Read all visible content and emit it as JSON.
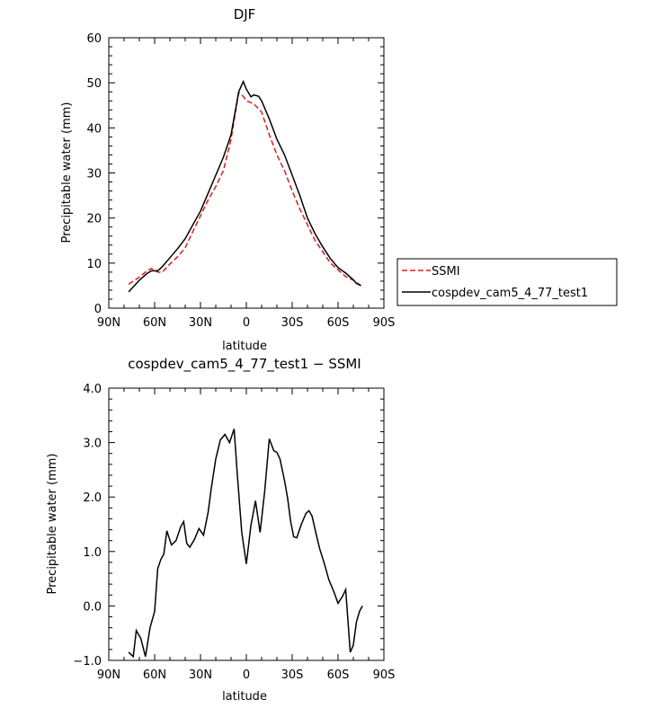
{
  "chart_data": [
    {
      "type": "line",
      "title": "DJF",
      "xlabel": "latitude",
      "ylabel": "Precipitable water (mm)",
      "xlim": [
        90,
        -90
      ],
      "ylim": [
        0,
        60
      ],
      "x_ticks": [
        90,
        60,
        30,
        0,
        -30,
        -60,
        -90
      ],
      "x_tick_labels": [
        "90N",
        "60N",
        "30N",
        "0",
        "30S",
        "60S",
        "90S"
      ],
      "y_ticks": [
        0,
        10,
        20,
        30,
        40,
        50,
        60
      ],
      "y_tick_labels": [
        "0",
        "10",
        "20",
        "30",
        "40",
        "50",
        "60"
      ],
      "grid": false,
      "legend_position": "right",
      "series": [
        {
          "name": "SSMI",
          "color": "#e01b1b",
          "dash": "dashed",
          "x": [
            77,
            70,
            65,
            62,
            58,
            55,
            50,
            45,
            40,
            35,
            30,
            25,
            20,
            15,
            10,
            5,
            2,
            0,
            -5,
            -10,
            -15,
            -20,
            -25,
            -30,
            -35,
            -40,
            -45,
            -50,
            -55,
            -60,
            -65,
            -70,
            -75
          ],
          "y": [
            5.3,
            6.9,
            8.3,
            8.8,
            8.0,
            8.0,
            9.8,
            11.4,
            13.4,
            17.0,
            20.5,
            24.0,
            27.0,
            30.5,
            37.5,
            47.8,
            47.0,
            46.0,
            45.3,
            43.5,
            38.5,
            34.0,
            30.5,
            26.0,
            22.0,
            18.5,
            15.0,
            12.5,
            10.0,
            8.5,
            7.0,
            6.2,
            5.0
          ]
        },
        {
          "name": "cospdev_cam5_4_77_test1",
          "color": "#000000",
          "dash": "solid",
          "x": [
            77,
            70,
            65,
            62,
            58,
            55,
            50,
            45,
            40,
            35,
            30,
            25,
            20,
            15,
            10,
            5,
            2,
            0,
            -3,
            -5,
            -8,
            -10,
            -15,
            -20,
            -25,
            -30,
            -35,
            -40,
            -45,
            -50,
            -55,
            -60,
            -65,
            -70,
            -72,
            -75
          ],
          "y": [
            3.6,
            6.2,
            7.7,
            8.3,
            8.3,
            9.2,
            11.2,
            13.2,
            15.4,
            18.5,
            21.5,
            25.5,
            29.5,
            33.5,
            38.5,
            48.0,
            50.3,
            48.6,
            46.9,
            47.3,
            47.0,
            46.0,
            42.0,
            37.5,
            34.0,
            29.5,
            25.0,
            20.0,
            16.5,
            13.6,
            11.0,
            9.0,
            7.8,
            6.3,
            5.5,
            5.0
          ]
        }
      ]
    },
    {
      "type": "line",
      "title": "cospdev_cam5_4_77_test1 − SSMI",
      "xlabel": "latitude",
      "ylabel": "Precipitable water (mm)",
      "xlim": [
        90,
        -90
      ],
      "ylim": [
        -1,
        4
      ],
      "x_ticks": [
        90,
        60,
        30,
        0,
        -30,
        -60,
        -90
      ],
      "x_tick_labels": [
        "90N",
        "60N",
        "30N",
        "0",
        "30S",
        "60S",
        "90S"
      ],
      "y_ticks": [
        -1,
        0,
        1,
        2,
        3,
        4
      ],
      "y_tick_labels": [
        "−1.0",
        "0.0",
        "1.0",
        "2.0",
        "3.0",
        "4.0"
      ],
      "grid": false,
      "series": [
        {
          "color": "#000000",
          "dash": "solid",
          "x": [
            77,
            74,
            72,
            69,
            66,
            63,
            60,
            58,
            56,
            54,
            52,
            49,
            46,
            43,
            41,
            39,
            37,
            34,
            31,
            28,
            25,
            23,
            20,
            17,
            14,
            11,
            8,
            6,
            3,
            0,
            -3,
            -6,
            -9,
            -12,
            -15,
            -18,
            -20,
            -22,
            -25,
            -27,
            -29,
            -31,
            -33,
            -36,
            -39,
            -41,
            -43,
            -46,
            -48,
            -51,
            -54,
            -57,
            -60,
            -63,
            -65,
            -68,
            -70,
            -72,
            -74,
            -76
          ],
          "y": [
            -0.85,
            -0.93,
            -0.45,
            -0.6,
            -0.93,
            -0.4,
            -0.1,
            0.68,
            0.85,
            0.95,
            1.38,
            1.12,
            1.2,
            1.45,
            1.55,
            1.15,
            1.08,
            1.22,
            1.42,
            1.3,
            1.72,
            2.15,
            2.7,
            3.05,
            3.15,
            3.0,
            3.25,
            2.45,
            1.35,
            0.77,
            1.48,
            1.93,
            1.35,
            2.1,
            3.07,
            2.85,
            2.82,
            2.7,
            2.3,
            1.98,
            1.55,
            1.27,
            1.25,
            1.5,
            1.7,
            1.75,
            1.65,
            1.28,
            1.05,
            0.78,
            0.48,
            0.28,
            0.05,
            0.18,
            0.3,
            -0.85,
            -0.72,
            -0.3,
            -0.1,
            0.0
          ]
        }
      ]
    }
  ]
}
